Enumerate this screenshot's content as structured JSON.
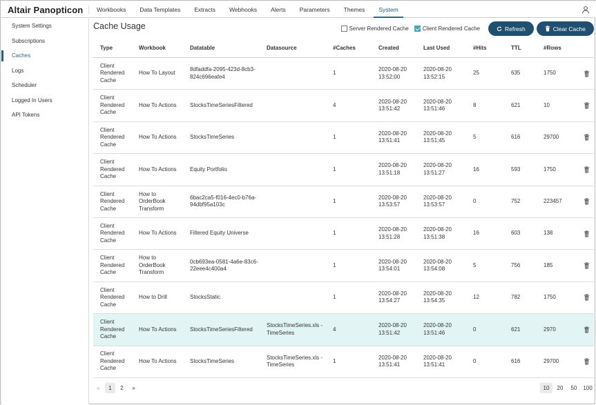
{
  "app": {
    "brand": "Altair Panopticon"
  },
  "nav": {
    "items": [
      "Workbooks",
      "Data Templates",
      "Extracts",
      "Webhooks",
      "Alerts",
      "Parameters",
      "Themes",
      "System"
    ],
    "active": "System"
  },
  "sidebar": {
    "items": [
      "System Settings",
      "Subscriptions",
      "Caches",
      "Logs",
      "Scheduler",
      "Logged In Users",
      "API Tokens"
    ],
    "active": "Caches"
  },
  "page": {
    "title": "Cache Usage"
  },
  "toolbar": {
    "server_rendered_label": "Server Rendered Cache",
    "server_rendered_checked": false,
    "client_rendered_label": "Client Rendered Cache",
    "client_rendered_checked": true,
    "refresh_label": "Refresh",
    "clear_label": "Clear Cache"
  },
  "table": {
    "columns": [
      "Type",
      "Workbook",
      "Datatable",
      "Datasource",
      "#Caches",
      "Created",
      "Last Used",
      "#Hits",
      "TTL",
      "#Rows"
    ],
    "rows": [
      {
        "type": "Client Rendered Cache",
        "workbook": "How To Layout",
        "datatable": "8dfaddfa-2095-423d-8cb3-824c696eafe4",
        "datasource": "",
        "caches": "1",
        "created": "2020-08-20 13:52:00",
        "last_used": "2020-08-20 13:52:15",
        "hits": "25",
        "ttl": "635",
        "rows": "1750"
      },
      {
        "type": "Client Rendered Cache",
        "workbook": "How To Actions",
        "datatable": "StocksTimeSeriesFiltered",
        "datasource": "",
        "caches": "4",
        "created": "2020-08-20 13:51:42",
        "last_used": "2020-08-20 13:51:46",
        "hits": "8",
        "ttl": "621",
        "rows": "10"
      },
      {
        "type": "Client Rendered Cache",
        "workbook": "How To Actions",
        "datatable": "StocksTimeSeries",
        "datasource": "",
        "caches": "1",
        "created": "2020-08-20 13:51:41",
        "last_used": "2020-08-20 13:51:45",
        "hits": "5",
        "ttl": "616",
        "rows": "29700"
      },
      {
        "type": "Client Rendered Cache",
        "workbook": "How To Actions",
        "datatable": "Equity Portfolio",
        "datasource": "",
        "caches": "1",
        "created": "2020-08-20 13:51:18",
        "last_used": "2020-08-20 13:51:27",
        "hits": "16",
        "ttl": "593",
        "rows": "1750"
      },
      {
        "type": "Client Rendered Cache",
        "workbook": "How to OrderBook Transform",
        "datatable": "6bac2ca5-f016-4ec0-b76a-94dbf95a103c",
        "datasource": "",
        "caches": "1",
        "created": "2020-08-20 13:53:57",
        "last_used": "2020-08-20 13:53:57",
        "hits": "0",
        "ttl": "752",
        "rows": "223457"
      },
      {
        "type": "Client Rendered Cache",
        "workbook": "How To Actions",
        "datatable": "Filtered Equity Universe",
        "datasource": "",
        "caches": "1",
        "created": "2020-08-20 13:51:28",
        "last_used": "2020-08-20 13:51:38",
        "hits": "16",
        "ttl": "603",
        "rows": "138"
      },
      {
        "type": "Client Rendered Cache",
        "workbook": "How to OrderBook Transform",
        "datatable": "0cb693ea-0581-4a6e-83c6-22eee4c400a4",
        "datasource": "",
        "caches": "1",
        "created": "2020-08-20 13:54:01",
        "last_used": "2020-08-20 13:54:08",
        "hits": "5",
        "ttl": "756",
        "rows": "185"
      },
      {
        "type": "Client Rendered Cache",
        "workbook": "How to Drill",
        "datatable": "StocksStatic",
        "datasource": "",
        "caches": "1",
        "created": "2020-08-20 13:54:27",
        "last_used": "2020-08-20 13:54:35",
        "hits": "12",
        "ttl": "782",
        "rows": "1750"
      },
      {
        "type": "Client Rendered Cache",
        "workbook": "How To Actions",
        "datatable": "StocksTimeSeriesFiltered",
        "datasource": "StocksTimeSeries.xls - TimeSeries",
        "caches": "4",
        "created": "2020-08-20 13:51:42",
        "last_used": "2020-08-20 13:51:46",
        "hits": "0",
        "ttl": "621",
        "rows": "2970",
        "highlighted": true
      },
      {
        "type": "Client Rendered Cache",
        "workbook": "How To Actions",
        "datatable": "StocksTimeSeries",
        "datasource": "StocksTimeSeries.xls - TimeSeries",
        "caches": "1",
        "created": "2020-08-20 13:51:41",
        "last_used": "2020-08-20 13:51:41",
        "hits": "0",
        "ttl": "616",
        "rows": "29700"
      }
    ]
  },
  "pagination": {
    "prev": "«",
    "pages": [
      "1",
      "2"
    ],
    "current": "1",
    "next": "»"
  },
  "page_sizes": {
    "options": [
      "10",
      "20",
      "50",
      "100"
    ],
    "selected": "10"
  },
  "colors": {
    "accent": "#1f5070",
    "highlight_row": "#e3f4f5",
    "checkbox": "#3aa9b5"
  }
}
